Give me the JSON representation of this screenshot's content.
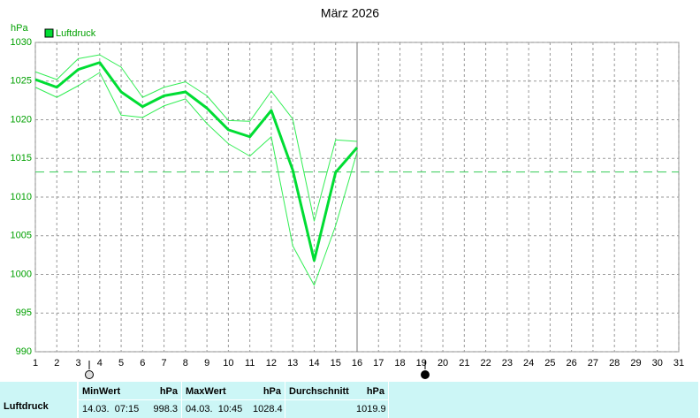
{
  "chart_data": {
    "type": "line",
    "title": "März 2026",
    "y_unit": "hPa",
    "x": [
      1,
      2,
      3,
      4,
      5,
      6,
      7,
      8,
      9,
      10,
      11,
      12,
      13,
      14,
      15,
      16
    ],
    "series": [
      {
        "name": "Luftdruck",
        "color": "#00dd33",
        "values": [
          1025.2,
          1024.2,
          1026.5,
          1027.4,
          1023.6,
          1021.7,
          1023.1,
          1023.6,
          1021.5,
          1018.7,
          1017.8,
          1021.2,
          1013.5,
          1001.8,
          1013.2,
          1016.4
        ]
      }
    ],
    "range": {
      "color": "#33ee55",
      "min": [
        1024.2,
        1022.9,
        1024.4,
        1026.1,
        1020.6,
        1020.3,
        1021.8,
        1022.7,
        1019.5,
        1016.9,
        1015.3,
        1017.8,
        1003.7,
        998.6,
        1006.3,
        1015.8
      ],
      "max": [
        1026.2,
        1025.2,
        1027.9,
        1028.4,
        1026.8,
        1022.9,
        1024.2,
        1024.9,
        1023.1,
        1019.9,
        1019.8,
        1023.7,
        1020.1,
        1006.9,
        1017.4,
        1017.2
      ]
    },
    "reference_line": 1013.25,
    "reference_color": "#33cc55",
    "xlim": [
      1,
      31
    ],
    "xticks": [
      1,
      2,
      3,
      4,
      5,
      6,
      7,
      8,
      9,
      10,
      11,
      12,
      13,
      14,
      15,
      16,
      17,
      18,
      19,
      20,
      21,
      22,
      23,
      24,
      25,
      26,
      27,
      28,
      29,
      30,
      31
    ],
    "ylim": [
      990,
      1030
    ],
    "yticks": [
      990,
      995,
      1000,
      1005,
      1010,
      1015,
      1020,
      1025,
      1030
    ],
    "grid": true
  },
  "stats": {
    "label": "Luftdruck",
    "columns": [
      {
        "name": "MinWert",
        "unit": "hPa",
        "time": "14.03.  07:15",
        "value": "998.3"
      },
      {
        "name": "MaxWert",
        "unit": "hPa",
        "time": "04.03.  10:45",
        "value": "1028.4"
      },
      {
        "name": "Durchschnitt",
        "unit": "hPa",
        "value": "1019.9"
      }
    ]
  }
}
